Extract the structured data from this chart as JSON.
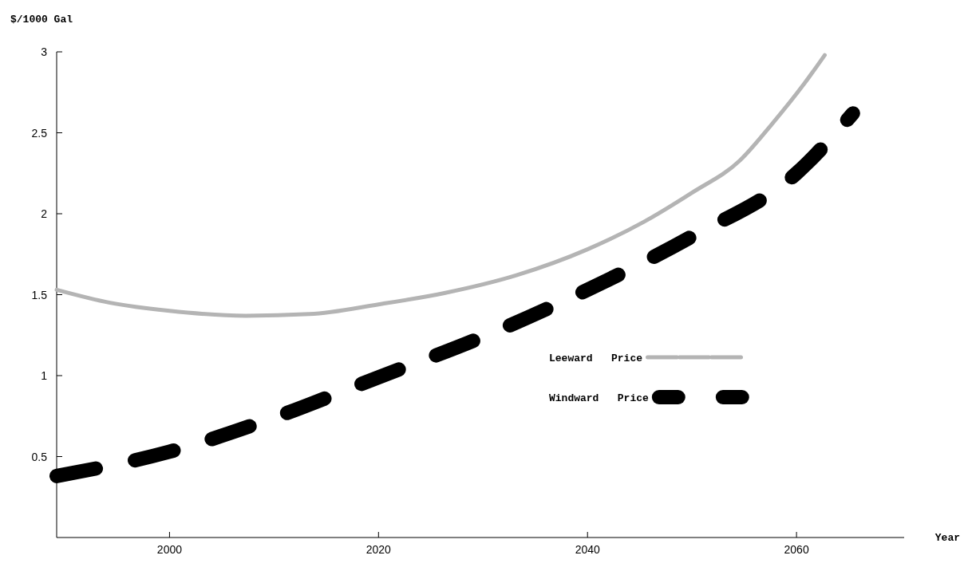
{
  "chart_data": {
    "type": "line",
    "xlabel": "Year",
    "ylabel": "$/1000 Gal",
    "xlim": [
      1989.2,
      2070.3
    ],
    "ylim": [
      0,
      3
    ],
    "xticks": [
      2000,
      2020,
      2040,
      2060
    ],
    "yticks": [
      0.5,
      1,
      1.5,
      2,
      2.5,
      3
    ],
    "grid": false,
    "legend": "bottom right",
    "marker": "none",
    "series": [
      {
        "name": "Leeward   Price",
        "color": "#b4b4b4",
        "line_style": "solid",
        "x": [
          1989.2,
          1994.3,
          2000,
          2007.3,
          2013.4,
          2020,
          2026.3,
          2033.2,
          2040,
          2045.4,
          2050,
          2054.6,
          2057.6,
          2060.7,
          2062.7
        ],
        "values": [
          1.53,
          1.45,
          1.4,
          1.37,
          1.38,
          1.44,
          1.51,
          1.62,
          1.78,
          1.95,
          2.13,
          2.33,
          2.55,
          2.8,
          2.98
        ]
      },
      {
        "name": "Windward   Price",
        "color": "#000000",
        "line_style": "dashed",
        "x": [
          1989.2,
          2000,
          2010,
          2020,
          2030,
          2040,
          2050,
          2060,
          2065.4
        ],
        "values": [
          0.38,
          0.53,
          0.74,
          0.99,
          1.24,
          1.53,
          1.86,
          2.25,
          2.62
        ]
      }
    ]
  }
}
